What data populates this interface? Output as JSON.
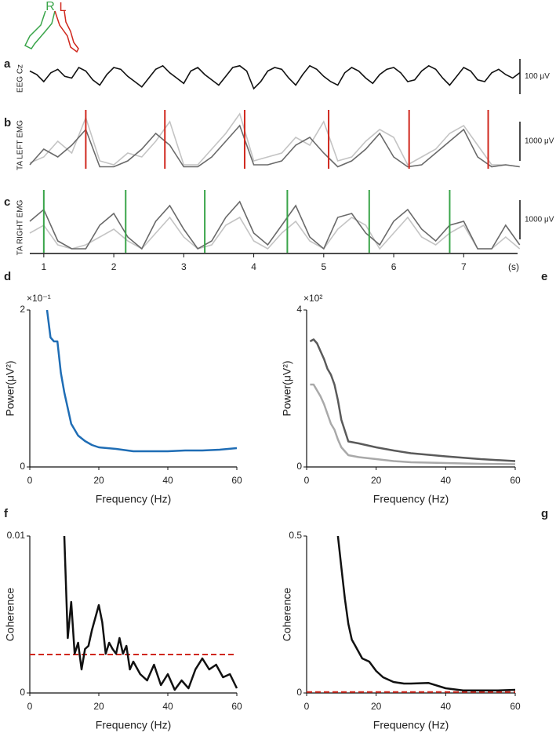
{
  "chart_data": [
    {
      "type": "trace",
      "panel": "a",
      "icon_labels": [
        "R",
        "L"
      ],
      "ylabel": "EEG Cz",
      "xlim": [
        0.8,
        7.77
      ],
      "x": [
        0.8,
        0.9,
        1.0,
        1.1,
        1.2,
        1.3,
        1.4,
        1.5,
        1.6,
        1.7,
        1.8,
        1.9,
        2.0,
        2.1,
        2.2,
        2.3,
        2.4,
        2.5,
        2.6,
        2.7,
        2.8,
        2.9,
        3.0,
        3.1,
        3.2,
        3.3,
        3.4,
        3.5,
        3.6,
        3.7,
        3.8,
        3.9,
        4.0,
        4.1,
        4.2,
        4.3,
        4.4,
        4.5,
        4.6,
        4.7,
        4.8,
        4.9,
        5.0,
        5.1,
        5.2,
        5.3,
        5.4,
        5.5,
        5.6,
        5.7,
        5.8,
        5.9,
        6.0,
        6.1,
        6.2,
        6.3,
        6.4,
        6.5,
        6.6,
        6.7,
        6.8,
        6.9,
        7.0,
        7.1,
        7.2,
        7.3,
        7.4,
        7.5,
        7.6,
        7.7,
        7.8
      ],
      "series": [
        {
          "color": "#111111",
          "values": [
            10,
            0,
            -20,
            5,
            15,
            -5,
            -10,
            20,
            10,
            -15,
            -30,
            0,
            20,
            15,
            -5,
            -20,
            -35,
            -10,
            15,
            25,
            5,
            -10,
            -25,
            10,
            20,
            0,
            -15,
            -30,
            -5,
            20,
            25,
            10,
            -40,
            -20,
            10,
            20,
            15,
            -10,
            -30,
            0,
            25,
            15,
            -5,
            -20,
            -30,
            5,
            20,
            10,
            -10,
            -25,
            0,
            15,
            20,
            5,
            -20,
            -15,
            10,
            25,
            15,
            -10,
            -30,
            -5,
            20,
            10,
            -15,
            -20,
            5,
            15,
            0,
            -10,
            5
          ]
        }
      ],
      "scale_bar": {
        "value": 100,
        "label": "100 μV"
      }
    },
    {
      "type": "trace",
      "panel": "b",
      "ylabel": "TA LEFT EMG",
      "xlim": [
        0.8,
        7.77
      ],
      "x": [
        0.8,
        1.0,
        1.2,
        1.4,
        1.6,
        1.8,
        2.0,
        2.2,
        2.4,
        2.6,
        2.8,
        3.0,
        3.2,
        3.4,
        3.6,
        3.8,
        4.0,
        4.2,
        4.4,
        4.6,
        4.8,
        5.0,
        5.2,
        5.4,
        5.6,
        5.8,
        6.0,
        6.2,
        6.4,
        6.6,
        6.8,
        7.0,
        7.2,
        7.4,
        7.6,
        7.8
      ],
      "series": [
        {
          "color": "#c4c4c4",
          "values": [
            150,
            300,
            700,
            400,
            1300,
            200,
            100,
            400,
            300,
            700,
            1200,
            100,
            100,
            500,
            900,
            1400,
            200,
            300,
            400,
            800,
            600,
            1200,
            200,
            300,
            700,
            1000,
            800,
            100,
            300,
            500,
            900,
            1100,
            600,
            100,
            100,
            50
          ]
        },
        {
          "color": "#6a6a6a",
          "values": [
            100,
            500,
            300,
            600,
            1000,
            50,
            50,
            200,
            500,
            900,
            600,
            50,
            50,
            300,
            700,
            1100,
            100,
            100,
            200,
            600,
            800,
            400,
            50,
            200,
            500,
            900,
            300,
            50,
            100,
            400,
            700,
            1000,
            300,
            50,
            100,
            50
          ]
        }
      ],
      "events": {
        "color": "#d0281e",
        "x": [
          1.6,
          2.73,
          3.87,
          5.07,
          6.22,
          7.35
        ]
      },
      "scale_bar": {
        "value": 1000,
        "label": "1000 μV"
      }
    },
    {
      "type": "trace",
      "panel": "c",
      "ylabel": "TA RIGHT EMG",
      "xlim": [
        0.8,
        7.77
      ],
      "x": [
        0.8,
        1.0,
        1.2,
        1.4,
        1.6,
        1.8,
        2.0,
        2.2,
        2.4,
        2.6,
        2.8,
        3.0,
        3.2,
        3.4,
        3.6,
        3.8,
        4.0,
        4.2,
        4.4,
        4.6,
        4.8,
        5.0,
        5.2,
        5.4,
        5.6,
        5.8,
        6.0,
        6.2,
        6.4,
        6.6,
        6.8,
        7.0,
        7.2,
        7.4,
        7.6,
        7.8
      ],
      "series": [
        {
          "color": "#c4c4c4",
          "values": [
            500,
            700,
            200,
            100,
            200,
            400,
            600,
            300,
            100,
            500,
            900,
            400,
            100,
            200,
            700,
            900,
            300,
            100,
            500,
            800,
            300,
            100,
            600,
            900,
            700,
            100,
            500,
            900,
            400,
            200,
            500,
            700,
            100,
            100,
            400,
            100
          ]
        },
        {
          "color": "#6a6a6a",
          "values": [
            800,
            1100,
            300,
            100,
            100,
            700,
            1000,
            400,
            100,
            800,
            1200,
            600,
            100,
            300,
            900,
            1300,
            500,
            200,
            700,
            1200,
            400,
            100,
            900,
            1000,
            500,
            200,
            800,
            1100,
            600,
            300,
            700,
            800,
            100,
            100,
            700,
            200
          ]
        }
      ],
      "events": {
        "color": "#3aa54a",
        "x": [
          1.0,
          2.17,
          3.3,
          4.48,
          5.65,
          6.8
        ]
      },
      "scale_bar": {
        "value": 1000,
        "label": "1000 μV"
      },
      "xticks": [
        1,
        2,
        3,
        4,
        5,
        6,
        7
      ],
      "xlabel": "(s)"
    },
    {
      "type": "line",
      "panel": "d",
      "ylabel": "Power(μV²)",
      "y_multiplier": "×10⁻¹",
      "xlabel": "Frequency (Hz)",
      "xlim": [
        0,
        60
      ],
      "xticks": [
        0,
        20,
        40,
        60
      ],
      "ylim": [
        0,
        2
      ],
      "yticks": [
        0,
        2
      ],
      "x": [
        5,
        6,
        7,
        8,
        9,
        10,
        11,
        12,
        14,
        16,
        18,
        20,
        25,
        30,
        35,
        40,
        45,
        50,
        55,
        60
      ],
      "series": [
        {
          "color": "#1f6db5",
          "values": [
            2.0,
            1.65,
            1.6,
            1.6,
            1.2,
            0.95,
            0.75,
            0.55,
            0.4,
            0.33,
            0.28,
            0.25,
            0.23,
            0.2,
            0.2,
            0.2,
            0.21,
            0.21,
            0.22,
            0.24
          ]
        }
      ]
    },
    {
      "type": "line",
      "panel": "e",
      "ylabel": "Power(μV²)",
      "y_multiplier": "×10²",
      "xlabel": "Frequency (Hz)",
      "xlim": [
        0,
        60
      ],
      "xticks": [
        0,
        20,
        40,
        60
      ],
      "ylim": [
        0,
        4
      ],
      "yticks": [
        0,
        4
      ],
      "x": [
        1,
        2,
        3,
        4,
        5,
        6,
        7,
        8,
        9,
        10,
        12,
        15,
        20,
        25,
        30,
        40,
        50,
        60
      ],
      "series": [
        {
          "color": "#a9a9a9",
          "values": [
            2.1,
            2.1,
            1.95,
            1.8,
            1.6,
            1.35,
            1.1,
            0.95,
            0.7,
            0.5,
            0.3,
            0.25,
            0.2,
            0.15,
            0.12,
            0.1,
            0.08,
            0.07
          ]
        },
        {
          "color": "#5a5a5a",
          "values": [
            3.2,
            3.25,
            3.15,
            2.95,
            2.75,
            2.5,
            2.35,
            2.1,
            1.7,
            1.2,
            0.65,
            0.6,
            0.5,
            0.42,
            0.35,
            0.27,
            0.2,
            0.15
          ]
        }
      ]
    },
    {
      "type": "line",
      "panel": "f",
      "ylabel": "Coherence",
      "xlabel": "Frequency (Hz)",
      "xlim": [
        0,
        60
      ],
      "xticks": [
        0,
        20,
        40,
        60
      ],
      "ylim": [
        0,
        0.01
      ],
      "yticks": [
        0,
        0.01
      ],
      "x": [
        10,
        11,
        12,
        13,
        14,
        15,
        16,
        17,
        18,
        19,
        20,
        21,
        22,
        23,
        24,
        25,
        26,
        27,
        28,
        29,
        30,
        32,
        34,
        36,
        38,
        40,
        42,
        44,
        46,
        48,
        50,
        52,
        54,
        56,
        58,
        60
      ],
      "series": [
        {
          "color": "#111111",
          "values": [
            0.01,
            0.0035,
            0.0058,
            0.0025,
            0.0032,
            0.0015,
            0.0028,
            0.003,
            0.004,
            0.0048,
            0.0056,
            0.0045,
            0.0025,
            0.0032,
            0.0028,
            0.0025,
            0.0035,
            0.0025,
            0.003,
            0.0015,
            0.002,
            0.0012,
            0.0008,
            0.0018,
            0.0005,
            0.0012,
            0.0002,
            0.0008,
            0.0003,
            0.0015,
            0.0022,
            0.0015,
            0.0018,
            0.001,
            0.0012,
            0.0003
          ]
        }
      ],
      "threshold": {
        "value": 0.00245,
        "color": "#d0281e"
      }
    },
    {
      "type": "line",
      "panel": "g",
      "ylabel": "Coherence",
      "xlabel": "Frequency (Hz)",
      "xlim": [
        0,
        60
      ],
      "xticks": [
        0,
        20,
        40,
        60
      ],
      "ylim": [
        0,
        0.5
      ],
      "yticks": [
        0,
        0.5
      ],
      "x": [
        9,
        10,
        11,
        12,
        13,
        14,
        16,
        18,
        20,
        22,
        25,
        28,
        30,
        35,
        40,
        45,
        50,
        55,
        60
      ],
      "series": [
        {
          "color": "#111111",
          "values": [
            0.5,
            0.4,
            0.3,
            0.22,
            0.17,
            0.15,
            0.11,
            0.1,
            0.07,
            0.05,
            0.035,
            0.03,
            0.03,
            0.032,
            0.015,
            0.008,
            0.008,
            0.008,
            0.01
          ]
        }
      ],
      "threshold": {
        "value": 0.003,
        "color": "#d0281e"
      }
    }
  ]
}
